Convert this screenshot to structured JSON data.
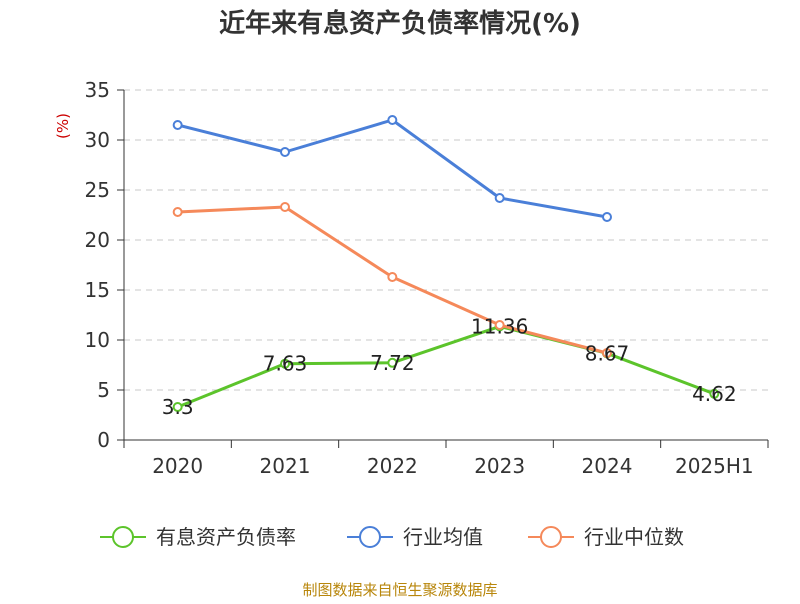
{
  "chart_data": {
    "type": "line",
    "title": "近年来有息资产负债率情况(%)",
    "ylabel": "(%)",
    "xlabel": "",
    "categories": [
      "2020",
      "2021",
      "2022",
      "2023",
      "2024",
      "2025H1"
    ],
    "ylim": [
      0,
      35
    ],
    "yticks": [
      0,
      5,
      10,
      15,
      20,
      25,
      30,
      35
    ],
    "grid": true,
    "legend_position": "bottom",
    "series": [
      {
        "name": "有息资产负债率",
        "color": "#5cc42b",
        "values": [
          3.3,
          7.63,
          7.72,
          11.36,
          8.67,
          4.62
        ],
        "labels": [
          "3.3",
          "7.63",
          "7.72",
          "11.36",
          "8.67",
          "4.62"
        ],
        "show_labels": true
      },
      {
        "name": "行业均值",
        "color": "#4a7fd8",
        "values": [
          31.5,
          28.8,
          32.0,
          24.2,
          22.3,
          null
        ],
        "show_labels": false
      },
      {
        "name": "行业中位数",
        "color": "#f5895a",
        "values": [
          22.8,
          23.3,
          16.3,
          11.5,
          8.7,
          null
        ],
        "show_labels": false
      }
    ],
    "source": "制图数据来自恒生聚源数据库"
  }
}
